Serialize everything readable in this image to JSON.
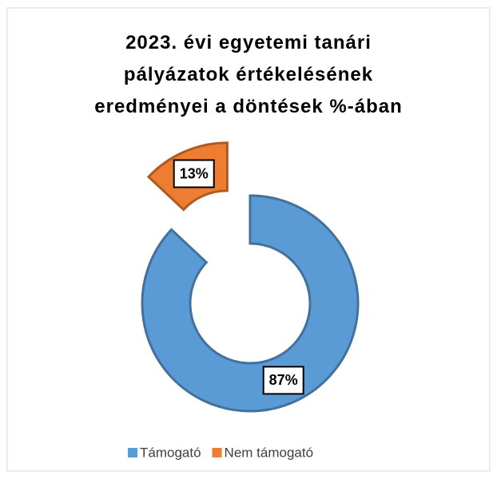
{
  "chart_data": {
    "type": "donut",
    "title": "2023. évi egyetemi tanári pályázatok értékelésének eredményei a döntések %-ában",
    "categories": [
      "Támogató",
      "Nem támogató"
    ],
    "values": [
      87,
      13
    ],
    "value_labels": [
      "87%",
      "13%"
    ],
    "colors": [
      "#5b9bd5",
      "#ed7d31"
    ],
    "exploded": [
      false,
      true
    ],
    "legend": "bottom"
  }
}
